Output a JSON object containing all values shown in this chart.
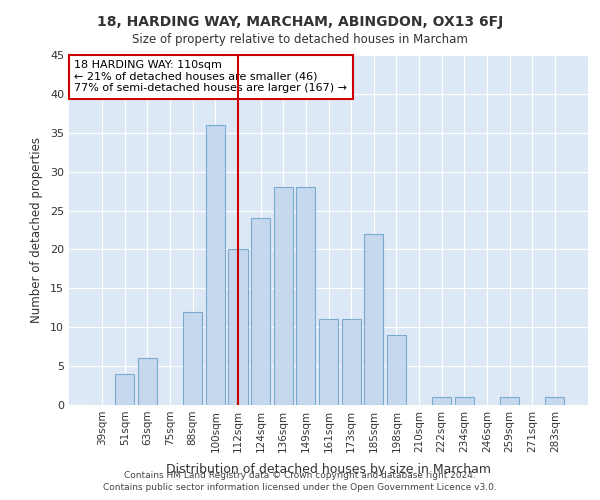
{
  "title1": "18, HARDING WAY, MARCHAM, ABINGDON, OX13 6FJ",
  "title2": "Size of property relative to detached houses in Marcham",
  "xlabel": "Distribution of detached houses by size in Marcham",
  "ylabel": "Number of detached properties",
  "annotation_line1": "18 HARDING WAY: 110sqm",
  "annotation_line2": "← 21% of detached houses are smaller (46)",
  "annotation_line3": "77% of semi-detached houses are larger (167) →",
  "categories": [
    "39sqm",
    "51sqm",
    "63sqm",
    "75sqm",
    "88sqm",
    "100sqm",
    "112sqm",
    "124sqm",
    "136sqm",
    "149sqm",
    "161sqm",
    "173sqm",
    "185sqm",
    "198sqm",
    "210sqm",
    "222sqm",
    "234sqm",
    "246sqm",
    "259sqm",
    "271sqm",
    "283sqm"
  ],
  "values": [
    0,
    4,
    6,
    0,
    12,
    36,
    20,
    24,
    28,
    28,
    11,
    11,
    22,
    9,
    0,
    1,
    1,
    0,
    1,
    0,
    1
  ],
  "bar_color": "#c5d8ee",
  "bar_edge_color": "#7baad0",
  "vline_color": "#cc0000",
  "annotation_box_color": "#ffffff",
  "annotation_box_edge": "#cc0000",
  "background_color": "#dce8f5",
  "plot_bg_color": "#dce8f5",
  "ylim": [
    0,
    45
  ],
  "yticks": [
    0,
    5,
    10,
    15,
    20,
    25,
    30,
    35,
    40,
    45
  ],
  "footnote1": "Contains HM Land Registry data © Crown copyright and database right 2024.",
  "footnote2": "Contains public sector information licensed under the Open Government Licence v3.0."
}
